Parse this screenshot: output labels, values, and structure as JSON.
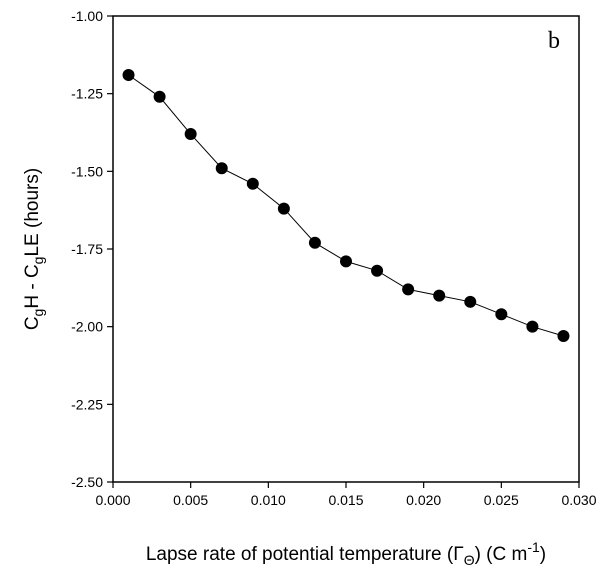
{
  "chart_data": {
    "type": "line",
    "panel_label": "b",
    "x_label": {
      "main": "Lapse rate of potential temperature (Γ",
      "sub": "Θ",
      "after": ") (C m",
      "sup": "-1",
      "end": ")"
    },
    "y_label": {
      "p1": "C",
      "s1": "g",
      "p2": "H - C",
      "s2": "g",
      "p3": "LE (hours)"
    },
    "xlim": [
      0.0,
      0.03
    ],
    "ylim": [
      -2.5,
      -1.0
    ],
    "x_ticks": [
      "0.000",
      "0.005",
      "0.010",
      "0.015",
      "0.020",
      "0.025",
      "0.030"
    ],
    "y_ticks": [
      "-1.00",
      "-1.25",
      "-1.50",
      "-1.75",
      "-2.00",
      "-2.25",
      "-2.50"
    ],
    "grid": false,
    "series": [
      {
        "marker": "filled-circle",
        "color": "#000000",
        "x": [
          0.001,
          0.003,
          0.005,
          0.007,
          0.009,
          0.011,
          0.013,
          0.015,
          0.017,
          0.019,
          0.021,
          0.023,
          0.025,
          0.027,
          0.029
        ],
        "y": [
          -1.19,
          -1.26,
          -1.38,
          -1.49,
          -1.54,
          -1.62,
          -1.73,
          -1.79,
          -1.82,
          -1.88,
          -1.9,
          -1.92,
          -1.96,
          -2.0,
          -2.03
        ]
      }
    ]
  }
}
